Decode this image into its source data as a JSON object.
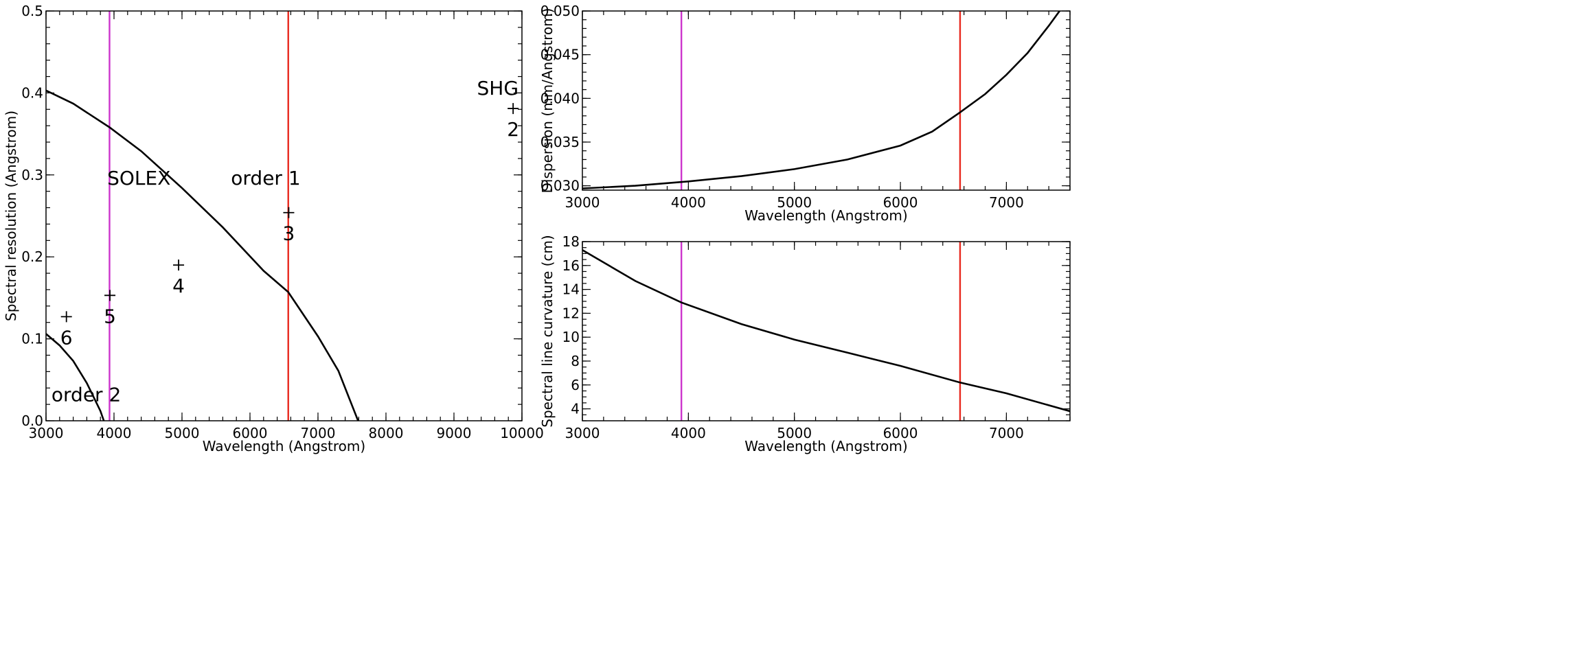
{
  "chart_data": [
    {
      "type": "line",
      "xlabel": "Wavelength (Angstrom)",
      "ylabel": "Spectral resolution (Angstrom)",
      "xlim": [
        3000,
        10000
      ],
      "ylim": [
        0,
        0.5
      ],
      "xticks": [
        "3000",
        "4000",
        "5000",
        "6000",
        "7000",
        "8000",
        "9000",
        "10000"
      ],
      "yticks": [
        "0.0",
        "0.1",
        "0.2",
        "0.3",
        "0.4",
        "0.5"
      ],
      "grid": false,
      "vlines": [
        {
          "x": 3934,
          "color": "#cc33cc"
        },
        {
          "x": 6563,
          "color": "#e8281e"
        }
      ],
      "series": [
        {
          "x": [
            3000,
            3400,
            3934,
            4400,
            5000,
            5600,
            6200,
            6563,
            7000,
            7300,
            7590
          ],
          "y": [
            0.403,
            0.387,
            0.358,
            0.329,
            0.284,
            0.236,
            0.183,
            0.157,
            0.103,
            0.061,
            0.0
          ]
        },
        {
          "x": [
            3000,
            3200,
            3400,
            3600,
            3800,
            3850
          ],
          "y": [
            0.106,
            0.092,
            0.073,
            0.046,
            0.012,
            0.0
          ]
        }
      ],
      "points": [
        {
          "x": 9870,
          "y": 0.381,
          "label": "2"
        },
        {
          "x": 6570,
          "y": 0.254,
          "label": "3"
        },
        {
          "x": 4950,
          "y": 0.19,
          "label": "4"
        },
        {
          "x": 3940,
          "y": 0.153,
          "label": "5"
        },
        {
          "x": 3300,
          "y": 0.127,
          "label": "6"
        }
      ],
      "annotations": [
        "SOLEX",
        "order 1",
        "order 2",
        "SHG"
      ]
    },
    {
      "type": "line",
      "xlabel": "Wavelength (Angstrom)",
      "ylabel": "Dispersion (mm/Angstrom)",
      "xlim": [
        3000,
        7600
      ],
      "ylim": [
        0.0295,
        0.05
      ],
      "xticks": [
        "3000",
        "4000",
        "5000",
        "6000",
        "7000"
      ],
      "yticks": [
        "0.030",
        "0.035",
        "0.040",
        "0.045",
        "0.050"
      ],
      "grid": false,
      "vlines": [
        {
          "x": 3934,
          "color": "#cc33cc"
        },
        {
          "x": 6563,
          "color": "#e8281e"
        }
      ],
      "series": [
        {
          "x": [
            3000,
            3500,
            4000,
            4500,
            5000,
            5500,
            6000,
            6300,
            6563,
            6800,
            7000,
            7200,
            7400,
            7550
          ],
          "y": [
            0.0297,
            0.03,
            0.0305,
            0.0311,
            0.0319,
            0.033,
            0.0346,
            0.0362,
            0.0384,
            0.0405,
            0.0427,
            0.0452,
            0.0483,
            0.0508
          ]
        }
      ]
    },
    {
      "type": "line",
      "xlabel": "Wavelength (Angstrom)",
      "ylabel": "Spectral line curvature (cm)",
      "xlim": [
        3000,
        7600
      ],
      "ylim": [
        3,
        18
      ],
      "xticks": [
        "3000",
        "4000",
        "5000",
        "6000",
        "7000"
      ],
      "yticks": [
        "4",
        "6",
        "8",
        "10",
        "12",
        "14",
        "16",
        "18"
      ],
      "grid": false,
      "vlines": [
        {
          "x": 3934,
          "color": "#cc33cc"
        },
        {
          "x": 6563,
          "color": "#e8281e"
        }
      ],
      "series": [
        {
          "x": [
            3000,
            3500,
            3934,
            4500,
            5000,
            5500,
            6000,
            6563,
            7000,
            7600
          ],
          "y": [
            17.3,
            14.7,
            12.9,
            11.1,
            9.8,
            8.7,
            7.6,
            6.2,
            5.3,
            3.8
          ]
        }
      ]
    }
  ]
}
